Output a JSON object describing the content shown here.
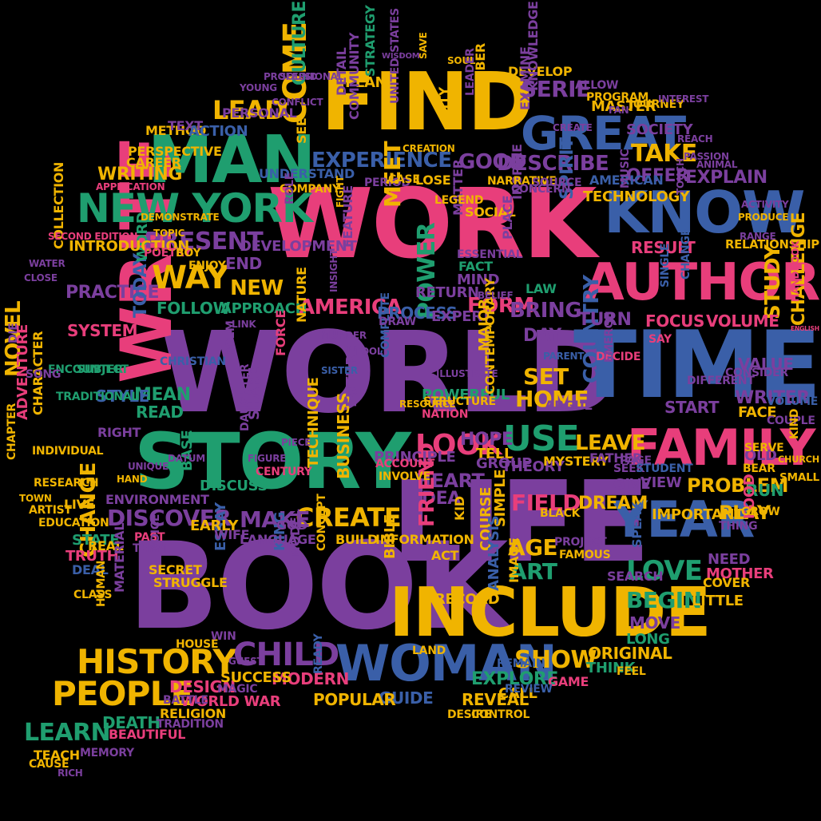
{
  "palette": {
    "pink": "#e83e7b",
    "purple": "#7b3f9e",
    "yellow": "#f0b400",
    "green": "#1f9e6f",
    "blue": "#3a5fa8",
    "background": "#000000"
  },
  "words": [
    "WORK",
    "WORLD",
    "TIME",
    "LIFE",
    "BOOK",
    "STORY",
    "FIND",
    "WRITE",
    "MAN",
    "INCLUDE",
    "KNOW",
    "AUTHOR",
    "FAMILY",
    "WOMAN",
    "YEAR",
    "GREAT",
    "NEW YORK",
    "HISTORY",
    "PEOPLE",
    "CHILD",
    "COME",
    "PRESENT",
    "WAY",
    "CREATE",
    "DISCOVER",
    "LOOK",
    "USE",
    "SET",
    "HOME",
    "LEARN",
    "LEAD",
    "EXPERIENCE",
    "GOOD",
    "DESCRIBE",
    "TAKE",
    "LOVE",
    "BEGIN",
    "SHOW",
    "FORM",
    "AMERICA",
    "BRING",
    "POWER",
    "COUNTRY",
    "STUDY",
    "CHALLENGE",
    "MAKE",
    "SERIE",
    "CULTURE",
    "PLAN",
    "FOLLOW",
    "APPROACH",
    "NEW",
    "PRACTICE",
    "SYSTEM",
    "TODAY",
    "MEAN",
    "READ",
    "STYLE",
    "NOVEL",
    "CHANGE",
    "LIVE",
    "MODERN",
    "DESIGN",
    "DEATH",
    "GUIDE",
    "EXPLORE",
    "REVEAL",
    "CALL",
    "AGE",
    "ART",
    "LEAVE",
    "GIVE",
    "VIEW",
    "PROBLEM",
    "DREAM",
    "FIELD",
    "HEART",
    "IDEA",
    "FRIEND",
    "DAY",
    "TURN",
    "FOCUS",
    "VOLUME",
    "RESULT",
    "RELATIONSHIP",
    "WRITING",
    "OFFER",
    "EXPLAIN",
    "SOCIETY",
    "DEVELOP",
    "MASTER",
    "MEET",
    "PROCESS",
    "RETURN",
    "MIND",
    "HOPE",
    "TELL",
    "GROUP",
    "THEORY",
    "MYSTERY",
    "FATHER",
    "START",
    "WRITER",
    "FACE",
    "VALUE",
    "OLD",
    "RUN",
    "PLAY",
    "FOOD",
    "NEED",
    "MOTHER",
    "COVER",
    "LITTLE",
    "MOVE",
    "LONG",
    "ORIGINAL",
    "THINK",
    "GAME",
    "COURSE",
    "SIMPLE",
    "POPULAR",
    "SUCCESS",
    "WORLD WAR",
    "BEAUTIFUL",
    "TEACH",
    "END",
    "DEVELOPMENT",
    "WORD",
    "BASE",
    "DISCUSS",
    "TECHNIQUE",
    "BUSINESS",
    "PRINCIPLE",
    "FUTURE",
    "SHARE",
    "NATURE",
    "FORCE",
    "INTRODUCTION",
    "COLLECTION",
    "ADVENTURE",
    "CHARACTER",
    "SECRET",
    "STRUGGLE",
    "ESSAY",
    "KING",
    "LANGUAGE",
    "MODEL",
    "HOUSE",
    "BIBLE",
    "RECORD",
    "ANALYSIS",
    "IMAGE",
    "BUILD",
    "INFORMATION",
    "CONCEPT",
    "RIGHT",
    "PERSONAL",
    "EXAMINE",
    "CAREER",
    "PERSPECTIVE",
    "METHOD",
    "TEXT",
    "ACTION",
    "SEE",
    "UNDERSTAND",
    "FEATURE",
    "DETAIL",
    "COMMUNITY",
    "STRATEGY",
    "CITY",
    "NUMBER",
    "KNOWLEDGE",
    "PROGRAM",
    "JOURNEY",
    "ALLOW",
    "MATTER",
    "SOCIAL",
    "SPIRIT",
    "LAW",
    "PLACE",
    "INSPIRE",
    "AMERICAN",
    "TECHNOLOGY",
    "COMPANY",
    "ROLE",
    "PERIOD",
    "CASE",
    "LOSE",
    "ESSENTIAL",
    "FACT",
    "EXPERT",
    "MAJOR",
    "COMPLETE",
    "POWERFUL",
    "CONTEMPORARY",
    "DRAW",
    "STRUCTURE",
    "ARGUE",
    "SPEAK",
    "IMPORTANT",
    "SEARCH",
    "TRUTH",
    "DEAL",
    "STATE",
    "REAL",
    "EARLY",
    "WIFE",
    "GOD",
    "NATION",
    "INVOLVE",
    "ACCOUNT",
    "PAST",
    "TERM",
    "VOICE",
    "DAUGHTER",
    "POEM",
    "CHRISTIAN",
    "SUBJECT",
    "ENCOUNTER",
    "TRADITIONAL",
    "ENVIRONMENT",
    "CLASS",
    "HUMAN",
    "MATERIAL",
    "RESEARCH",
    "INDIVIDUAL",
    "CHAPTER",
    "ARTIST",
    "EDUCATION",
    "MEMORY",
    "CAUSE",
    "RICH",
    "TRADITION",
    "RELIGION",
    "BATTLE",
    "WIN",
    "GUEST",
    "MAGIC",
    "READY",
    "DESIRE",
    "CONTROL",
    "REMAIN",
    "REVIEW",
    "LAND",
    "ACT",
    "KID",
    "BLACK",
    "PROJECT",
    "FAMOUS",
    "SEEK",
    "PAGE",
    "STUDENT",
    "SAY",
    "SINGLE",
    "CHANGE",
    "CONSIDER",
    "DIFFERENT",
    "VOLUME",
    "ENGLISH",
    "HANDBOOK",
    "COUPLE",
    "KIND",
    "CHURCH",
    "SMALL",
    "GROW",
    "THING",
    "SERVE",
    "BEAR",
    "FEEL",
    "DECIDE",
    "EMERGE",
    "LEGEND",
    "NARRATIVE",
    "CONCERN",
    "SOURCE",
    "MUSIC",
    "POETRY",
    "BOY",
    "ENJOY",
    "CONFLICT",
    "YOUNG",
    "PROFESSIONAL",
    "SOUND",
    "WISDOM",
    "SAVE",
    "SOUL",
    "UNITED_STATES",
    "LEADER",
    "CREATION",
    "APPLICATION",
    "DEMONSTRATE",
    "TOPIC",
    "SECOND EDITION",
    "WATER",
    "CLOSE",
    "DIE",
    "SONG",
    "TOWN",
    "UNIQUE",
    "HAND",
    "DATUM",
    "FIGURE",
    "CENTURY",
    "PIECE",
    "SISTER",
    "MURDER",
    "TOOL",
    "INSIGHT",
    "LINK",
    "FIGHT",
    "RESOURCE",
    "ILLUSTRATE",
    "BELIEF",
    "PARENT",
    "CREATE",
    "FAN",
    "INTEREST",
    "REACH",
    "PASSION",
    "ANIMAL",
    "TOUCH",
    "PRODUCE",
    "ACTIVITY",
    "RANGE",
    "ASPECT",
    "ORDER",
    "PROFESSOR",
    "NIGHT",
    "WANT",
    "HIGHLIGHT"
  ]
}
